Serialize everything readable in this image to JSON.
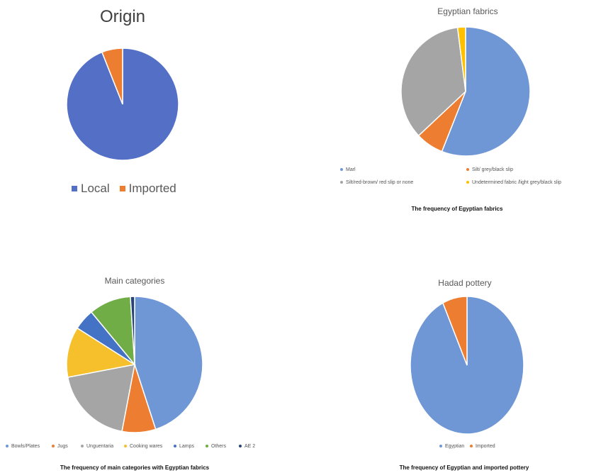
{
  "chart_data": [
    {
      "type": "pie",
      "title": "Origin",
      "categories": [
        "Local",
        "Imported"
      ],
      "values": [
        94,
        6
      ],
      "colors": [
        "#5470c6",
        "#ed7d31"
      ],
      "legend": "bottom",
      "caption": ""
    },
    {
      "type": "pie",
      "title": "Egyptian fabrics",
      "categories": [
        "Marl",
        "Silt/ grey/black slip",
        "Silt/red-brown/ red slip or none",
        "Undetermined fabric /light grey/black slip"
      ],
      "values": [
        56,
        7,
        35,
        2
      ],
      "colors": [
        "#6f97d6",
        "#ed7d31",
        "#a5a5a5",
        "#ffc000"
      ],
      "legend": "bottom",
      "caption": "The frequency of Egyptian fabrics"
    },
    {
      "type": "pie",
      "title": "Main categories",
      "categories": [
        "Bowls/Plates",
        "Jugs",
        "Unguentaria",
        "Cooking wares",
        "Lamps",
        "Others",
        "AE 2"
      ],
      "values": [
        45,
        8,
        19,
        12,
        5,
        10,
        1
      ],
      "colors": [
        "#6f97d6",
        "#ed7d31",
        "#a5a5a5",
        "#f5c02c",
        "#4472c4",
        "#70ad47",
        "#264478"
      ],
      "legend": "bottom",
      "caption": "The frequency of main categories with Egyptian fabrics"
    },
    {
      "type": "pie",
      "title": "Hadad pottery",
      "categories": [
        "Egyptian",
        "Imported"
      ],
      "values": [
        93,
        7
      ],
      "colors": [
        "#6f97d6",
        "#ed7d31"
      ],
      "legend": "bottom",
      "caption": "The frequency of Egyptian and imported pottery"
    }
  ]
}
